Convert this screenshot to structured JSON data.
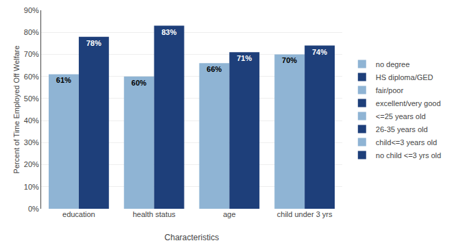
{
  "chart_data": {
    "type": "bar",
    "categories": [
      "education",
      "health status",
      "age",
      "child under 3 yrs"
    ],
    "xlabel": "Characteristics",
    "ylabel": "Percent of Time Employed Off Welfare",
    "series": [
      {
        "name": "no degree",
        "color": "#8fb4d4",
        "values": [
          61,
          null,
          null,
          null
        ],
        "value_labels": [
          "61%",
          null,
          null,
          null
        ]
      },
      {
        "name": "HS diploma/GED",
        "color": "#1e3f7a",
        "values": [
          78,
          null,
          null,
          null
        ],
        "value_labels": [
          "78%",
          null,
          null,
          null
        ]
      },
      {
        "name": "fair/poor",
        "color": "#8fb4d4",
        "values": [
          null,
          60,
          null,
          null
        ],
        "value_labels": [
          null,
          "60%",
          null,
          null
        ]
      },
      {
        "name": "excellent/very good",
        "color": "#1e3f7a",
        "values": [
          null,
          83,
          null,
          null
        ],
        "value_labels": [
          null,
          "83%",
          null,
          null
        ]
      },
      {
        "name": "<=25 years old",
        "color": "#8fb4d4",
        "values": [
          null,
          null,
          66,
          null
        ],
        "value_labels": [
          null,
          null,
          "66%",
          null
        ]
      },
      {
        "name": "26-35 years old",
        "color": "#1e3f7a",
        "values": [
          null,
          null,
          71,
          null
        ],
        "value_labels": [
          null,
          null,
          "71%",
          null
        ]
      },
      {
        "name": "child<=3 years old",
        "color": "#8fb4d4",
        "values": [
          null,
          null,
          null,
          70
        ],
        "value_labels": [
          null,
          null,
          null,
          "70%"
        ]
      },
      {
        "name": "no child <=3 yrs old",
        "color": "#1e3f7a",
        "values": [
          null,
          null,
          null,
          74
        ],
        "value_labels": [
          null,
          null,
          null,
          "74%"
        ]
      }
    ],
    "ylim": [
      0,
      90
    ],
    "yticks": [
      {
        "value": 0,
        "label": "0%"
      },
      {
        "value": 10,
        "label": "10%"
      },
      {
        "value": 20,
        "label": "20%"
      },
      {
        "value": 30,
        "label": "30%"
      },
      {
        "value": 40,
        "label": "40%"
      },
      {
        "value": 50,
        "label": "50%"
      },
      {
        "value": 60,
        "label": "60%"
      },
      {
        "value": 70,
        "label": "70%"
      },
      {
        "value": 80,
        "label": "80%"
      },
      {
        "value": 90,
        "label": "90%"
      }
    ],
    "grid": true,
    "legend": "right",
    "data_labels": true
  }
}
